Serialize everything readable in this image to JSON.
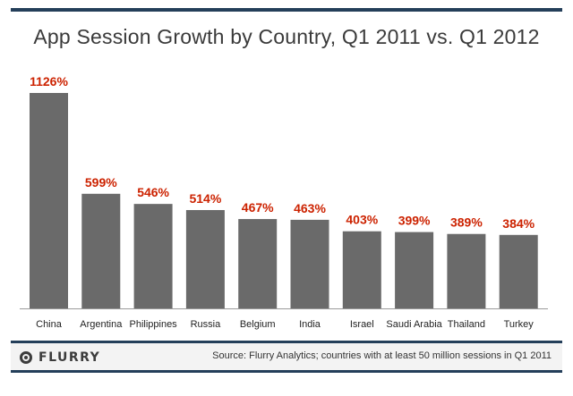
{
  "chart_data": {
    "type": "bar",
    "title": "App Session Growth by Country, Q1 2011 vs. Q1 2012",
    "xlabel": "",
    "ylabel": "",
    "categories": [
      "China",
      "Argentina",
      "Philippines",
      "Russia",
      "Belgium",
      "India",
      "Israel",
      "Saudi Arabia",
      "Thailand",
      "Turkey"
    ],
    "values": [
      1126,
      599,
      546,
      514,
      467,
      463,
      403,
      399,
      389,
      384
    ],
    "data_labels": [
      "1126%",
      "599%",
      "546%",
      "514%",
      "467%",
      "463%",
      "403%",
      "399%",
      "389%",
      "384%"
    ],
    "unit": "%",
    "ylim": [
      0,
      1126
    ],
    "grid": false,
    "legend": "none"
  },
  "colors": {
    "bar": "#6a6a6a",
    "label": "#cc2200",
    "rule": "#243f5a"
  },
  "footer": {
    "logo_text": "FLURRY",
    "source": "Source: Flurry Analytics; countries with at least 50 million sessions in Q1 2011"
  }
}
